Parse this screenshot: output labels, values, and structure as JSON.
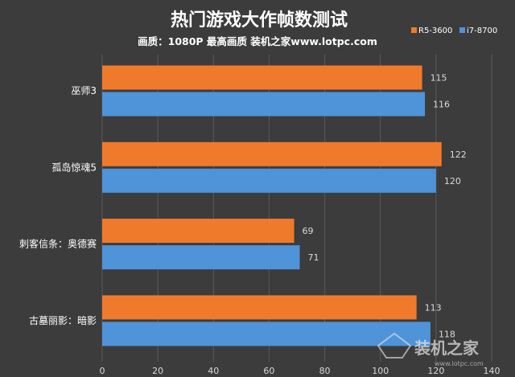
{
  "chart_data": {
    "type": "bar",
    "orientation": "horizontal",
    "title": "热门游戏大作帧数测试",
    "subtitle": "画质：1080P 最高画质 装机之家www.lotpc.com",
    "categories": [
      "巫师3",
      "孤岛惊魂5",
      "刺客信条：奥德赛",
      "古墓丽影：暗影"
    ],
    "series": [
      {
        "name": "R5-3600",
        "color": "#f07a2c",
        "values": [
          115,
          122,
          69,
          113
        ]
      },
      {
        "name": "i7-8700",
        "color": "#4f93d8",
        "values": [
          116,
          120,
          71,
          118
        ]
      }
    ],
    "xlim": [
      0,
      140
    ],
    "xticks": [
      0,
      20,
      40,
      60,
      80,
      100,
      120,
      140
    ],
    "grid": true,
    "legend_position": "top-right",
    "data_labels": true
  },
  "watermark": {
    "text": "装机之家",
    "url": "www.lotpc.com"
  }
}
